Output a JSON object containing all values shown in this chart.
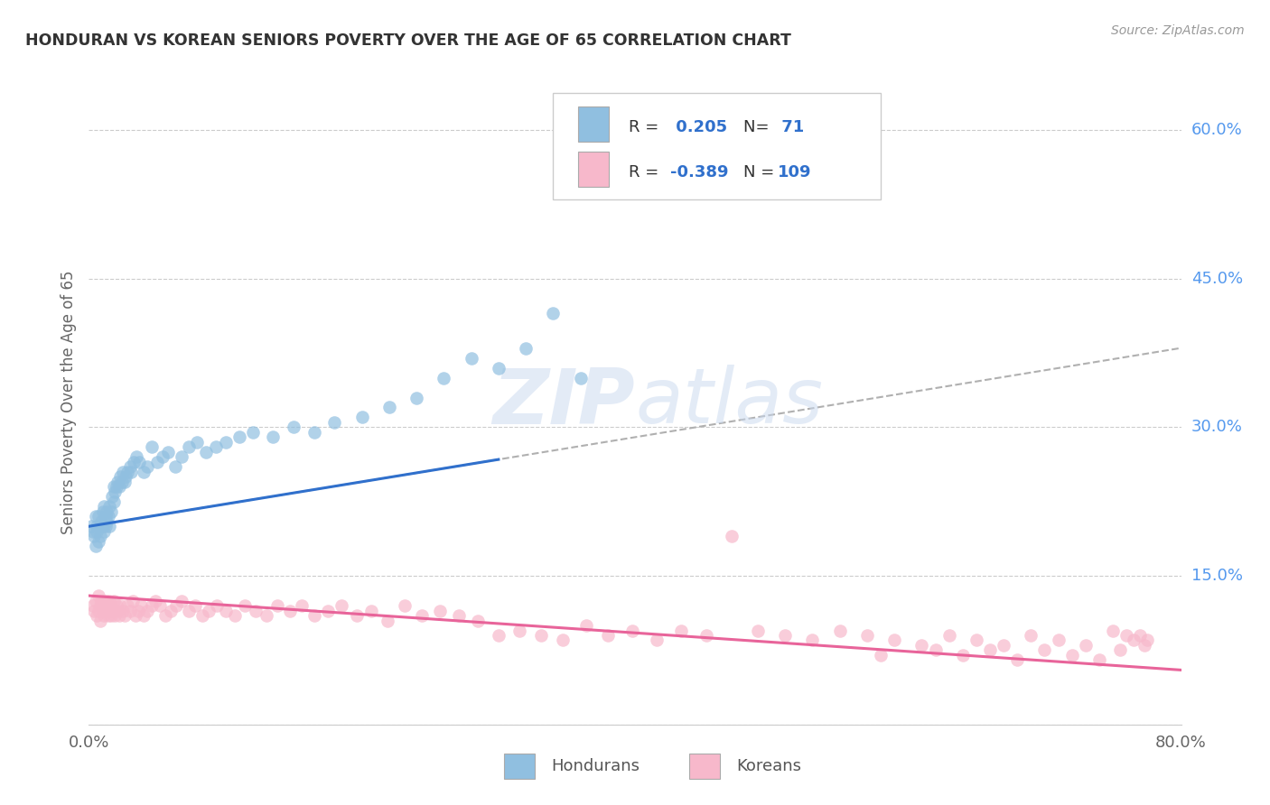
{
  "title": "HONDURAN VS KOREAN SENIORS POVERTY OVER THE AGE OF 65 CORRELATION CHART",
  "source": "Source: ZipAtlas.com",
  "ylabel": "Seniors Poverty Over the Age of 65",
  "xlim": [
    0.0,
    0.8
  ],
  "ylim": [
    0.0,
    0.65
  ],
  "xtick_positions": [
    0.0,
    0.2,
    0.4,
    0.6,
    0.8
  ],
  "xticklabels": [
    "0.0%",
    "",
    "",
    "",
    "80.0%"
  ],
  "ytick_positions": [
    0.0,
    0.15,
    0.3,
    0.45,
    0.6
  ],
  "ytick_labels_right": [
    "",
    "15.0%",
    "30.0%",
    "45.0%",
    "60.0%"
  ],
  "honduran_color": "#90bfe0",
  "korean_color": "#f7b8cb",
  "honduran_line_color": "#3070cc",
  "korean_line_color": "#e8649a",
  "dash_color": "#b0b0b0",
  "R_honduran": 0.205,
  "N_honduran": 71,
  "R_korean": -0.389,
  "N_korean": 109,
  "legend_label_honduran": "Hondurans",
  "legend_label_korean": "Koreans",
  "watermark": "ZIPatlas",
  "title_color": "#333333",
  "axis_color": "#888888",
  "grid_color": "#cccccc",
  "right_tick_color": "#5599ee",
  "honduran_x": [
    0.002,
    0.003,
    0.004,
    0.005,
    0.005,
    0.006,
    0.006,
    0.007,
    0.007,
    0.008,
    0.008,
    0.009,
    0.01,
    0.01,
    0.011,
    0.011,
    0.012,
    0.012,
    0.013,
    0.013,
    0.014,
    0.015,
    0.015,
    0.016,
    0.017,
    0.018,
    0.018,
    0.019,
    0.02,
    0.021,
    0.022,
    0.023,
    0.024,
    0.025,
    0.026,
    0.027,
    0.028,
    0.03,
    0.031,
    0.033,
    0.035,
    0.037,
    0.04,
    0.043,
    0.046,
    0.05,
    0.054,
    0.058,
    0.063,
    0.068,
    0.073,
    0.079,
    0.086,
    0.093,
    0.1,
    0.11,
    0.12,
    0.135,
    0.15,
    0.165,
    0.18,
    0.2,
    0.22,
    0.24,
    0.26,
    0.28,
    0.3,
    0.32,
    0.34,
    0.36,
    0.38
  ],
  "honduran_y": [
    0.2,
    0.195,
    0.19,
    0.21,
    0.18,
    0.2,
    0.195,
    0.21,
    0.185,
    0.2,
    0.19,
    0.205,
    0.2,
    0.215,
    0.195,
    0.22,
    0.21,
    0.2,
    0.215,
    0.205,
    0.21,
    0.2,
    0.22,
    0.215,
    0.23,
    0.225,
    0.24,
    0.235,
    0.24,
    0.245,
    0.24,
    0.25,
    0.245,
    0.255,
    0.245,
    0.25,
    0.255,
    0.26,
    0.255,
    0.265,
    0.27,
    0.265,
    0.255,
    0.26,
    0.28,
    0.265,
    0.27,
    0.275,
    0.26,
    0.27,
    0.28,
    0.285,
    0.275,
    0.28,
    0.285,
    0.29,
    0.295,
    0.29,
    0.3,
    0.295,
    0.305,
    0.31,
    0.32,
    0.33,
    0.35,
    0.37,
    0.36,
    0.38,
    0.415,
    0.35,
    0.6
  ],
  "korean_x": [
    0.003,
    0.004,
    0.005,
    0.006,
    0.007,
    0.007,
    0.008,
    0.008,
    0.009,
    0.01,
    0.01,
    0.011,
    0.011,
    0.012,
    0.012,
    0.013,
    0.014,
    0.014,
    0.015,
    0.015,
    0.016,
    0.016,
    0.017,
    0.018,
    0.019,
    0.02,
    0.021,
    0.022,
    0.023,
    0.025,
    0.026,
    0.028,
    0.03,
    0.032,
    0.034,
    0.036,
    0.038,
    0.04,
    0.043,
    0.046,
    0.049,
    0.052,
    0.056,
    0.06,
    0.064,
    0.068,
    0.073,
    0.078,
    0.083,
    0.088,
    0.094,
    0.1,
    0.107,
    0.114,
    0.122,
    0.13,
    0.138,
    0.147,
    0.156,
    0.165,
    0.175,
    0.185,
    0.196,
    0.207,
    0.219,
    0.231,
    0.244,
    0.257,
    0.271,
    0.285,
    0.3,
    0.315,
    0.331,
    0.347,
    0.364,
    0.38,
    0.398,
    0.416,
    0.434,
    0.452,
    0.471,
    0.49,
    0.51,
    0.53,
    0.55,
    0.57,
    0.59,
    0.61,
    0.63,
    0.65,
    0.67,
    0.69,
    0.71,
    0.73,
    0.75,
    0.76,
    0.765,
    0.77,
    0.773,
    0.775,
    0.58,
    0.62,
    0.64,
    0.66,
    0.68,
    0.7,
    0.72,
    0.74,
    0.755
  ],
  "korean_y": [
    0.12,
    0.115,
    0.125,
    0.11,
    0.13,
    0.115,
    0.12,
    0.105,
    0.125,
    0.115,
    0.12,
    0.125,
    0.11,
    0.12,
    0.115,
    0.125,
    0.11,
    0.12,
    0.115,
    0.125,
    0.11,
    0.12,
    0.115,
    0.125,
    0.11,
    0.12,
    0.115,
    0.11,
    0.12,
    0.115,
    0.11,
    0.12,
    0.115,
    0.125,
    0.11,
    0.115,
    0.12,
    0.11,
    0.115,
    0.12,
    0.125,
    0.12,
    0.11,
    0.115,
    0.12,
    0.125,
    0.115,
    0.12,
    0.11,
    0.115,
    0.12,
    0.115,
    0.11,
    0.12,
    0.115,
    0.11,
    0.12,
    0.115,
    0.12,
    0.11,
    0.115,
    0.12,
    0.11,
    0.115,
    0.105,
    0.12,
    0.11,
    0.115,
    0.11,
    0.105,
    0.09,
    0.095,
    0.09,
    0.085,
    0.1,
    0.09,
    0.095,
    0.085,
    0.095,
    0.09,
    0.19,
    0.095,
    0.09,
    0.085,
    0.095,
    0.09,
    0.085,
    0.08,
    0.09,
    0.085,
    0.08,
    0.09,
    0.085,
    0.08,
    0.095,
    0.09,
    0.085,
    0.09,
    0.08,
    0.085,
    0.07,
    0.075,
    0.07,
    0.075,
    0.065,
    0.075,
    0.07,
    0.065,
    0.075
  ]
}
